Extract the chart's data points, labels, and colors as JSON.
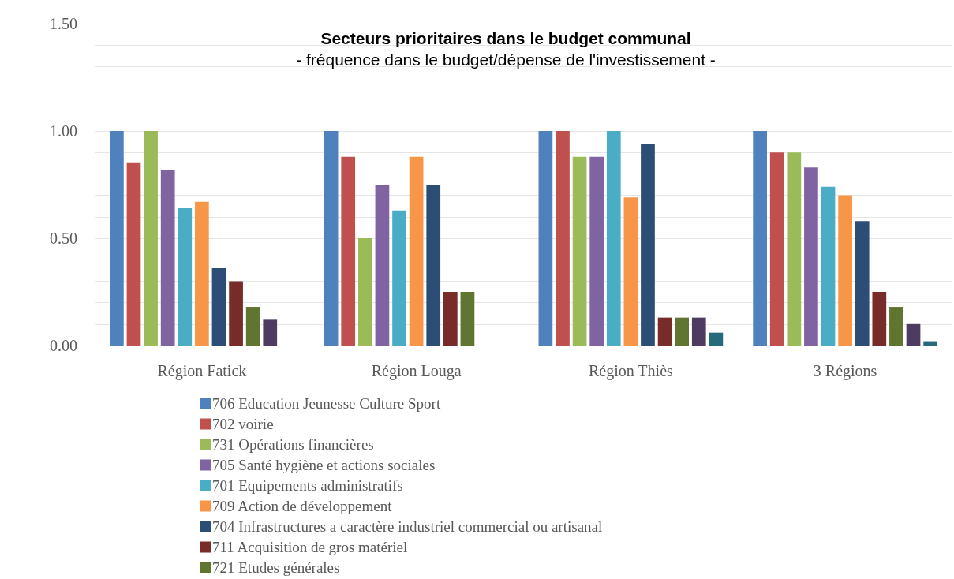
{
  "chart_data": {
    "type": "bar",
    "title": "Secteurs prioritaires dans le budget communal",
    "subtitle": "- fréquence dans le budget/dépense de l'investissement -",
    "categories": [
      "Région Fatick",
      "Région Louga",
      "Région Thiès",
      "3 Régions"
    ],
    "ylim": [
      0,
      1.5
    ],
    "yticks": [
      {
        "value": 0,
        "label": "0.00"
      },
      {
        "value": 0.1,
        "label": null
      },
      {
        "value": 0.2,
        "label": null
      },
      {
        "value": 0.3,
        "label": null
      },
      {
        "value": 0.4,
        "label": null
      },
      {
        "value": 0.5,
        "label": "0.50"
      },
      {
        "value": 0.6,
        "label": null
      },
      {
        "value": 0.7,
        "label": null
      },
      {
        "value": 0.8,
        "label": null
      },
      {
        "value": 0.9,
        "label": null
      },
      {
        "value": 1,
        "label": "1.00"
      },
      {
        "value": 1.1,
        "label": null
      },
      {
        "value": 1.2,
        "label": null
      },
      {
        "value": 1.3,
        "label": null
      },
      {
        "value": 1.4,
        "label": null
      },
      {
        "value": 1.5,
        "label": "1.50"
      }
    ],
    "grid": "y",
    "legend": "bottom",
    "series": [
      {
        "name": "706 Education Jeunesse Culture Sport",
        "color": "#4f81bd",
        "values": [
          1,
          1,
          1,
          1
        ]
      },
      {
        "name": "702 voirie",
        "color": "#c0504d",
        "values": [
          0.85,
          0.88,
          1,
          0.9
        ]
      },
      {
        "name": "731 Opérations financières",
        "color": "#9bbb59",
        "values": [
          1,
          0.5,
          0.88,
          0.9
        ]
      },
      {
        "name": "705 Santé hygiène et actions sociales",
        "color": "#8064a2",
        "values": [
          0.82,
          0.75,
          0.88,
          0.83
        ]
      },
      {
        "name": "701 Equipements administratifs",
        "color": "#4bacc6",
        "values": [
          0.64,
          0.63,
          1,
          0.74
        ]
      },
      {
        "name": "709 Action de développement",
        "color": "#f79646",
        "values": [
          0.67,
          0.88,
          0.69,
          0.7
        ]
      },
      {
        "name": "704 Infrastructures a caractère industriel commercial ou artisanal",
        "color": "#2c4d75",
        "values": [
          0.36,
          0.75,
          0.94,
          0.58
        ]
      },
      {
        "name": "711 Acquisition de gros matériel",
        "color": "#772c2a",
        "values": [
          0.3,
          0.25,
          0.13,
          0.25
        ]
      },
      {
        "name": "721 Etudes générales",
        "color": "#5f7530",
        "values": [
          0.18,
          0.25,
          0.13,
          0.18
        ]
      },
      {
        "color": "#4d3b62",
        "values": [
          0.12,
          null,
          0.13,
          0.1
        ]
      },
      {
        "color": "#276a7c",
        "values": [
          null,
          null,
          0.06,
          0.02
        ]
      }
    ]
  }
}
